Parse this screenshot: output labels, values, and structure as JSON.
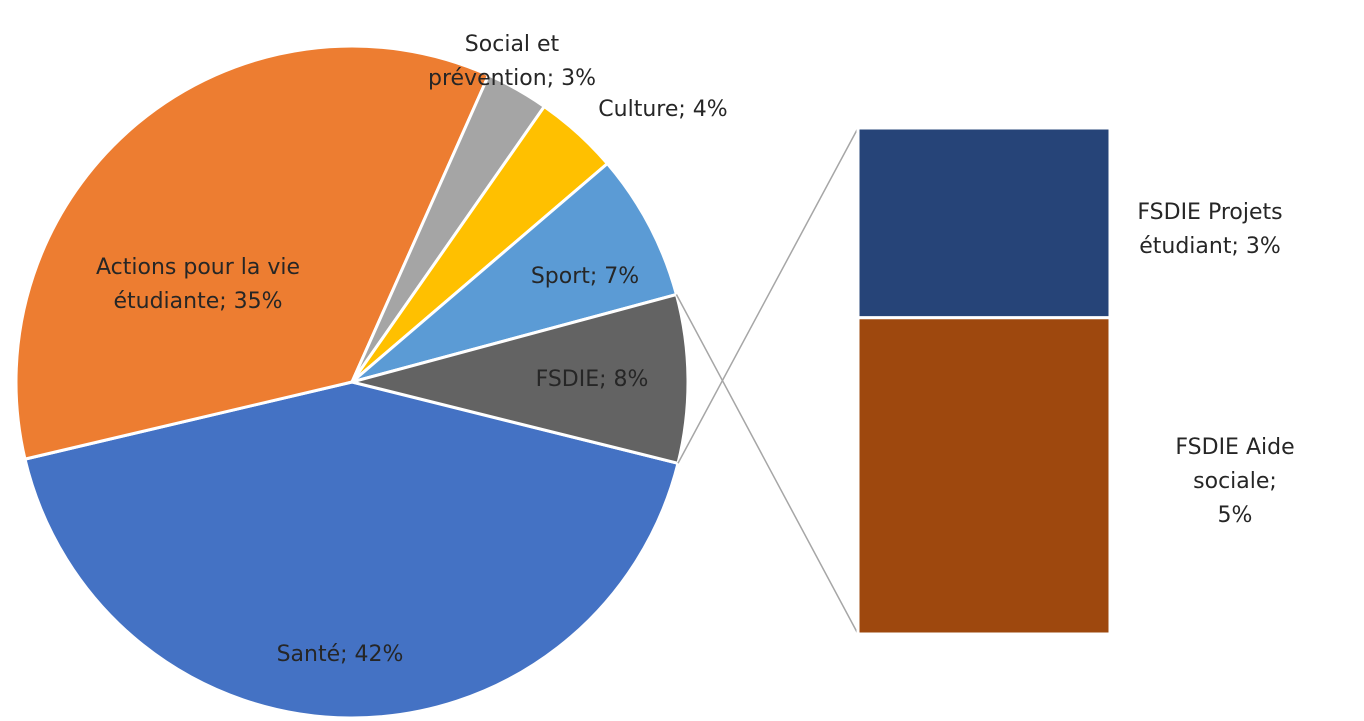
{
  "chart_data": [
    {
      "type": "pie",
      "values": [
        42,
        35,
        3,
        4,
        7,
        8
      ],
      "value_labels": [
        "Santé; 42%",
        "Actions pour la vie\nétudiante; 35%",
        "Social et\nprévention; 3%",
        "Culture; 4%",
        "Sport; 7%",
        "FSDIE; 8%"
      ],
      "colors": [
        "#4472c4",
        "#ed7d31",
        "#a5a5a5",
        "#ffc000",
        "#5b9bd5",
        "#636363"
      ]
    },
    {
      "type": "bar",
      "values": [
        3,
        5
      ],
      "value_labels": [
        "FSDIE Projets\nétudiant; 3%",
        "FSDIE Aide sociale;\n5%"
      ],
      "colors": [
        "#264478",
        "#9e480e"
      ]
    }
  ]
}
